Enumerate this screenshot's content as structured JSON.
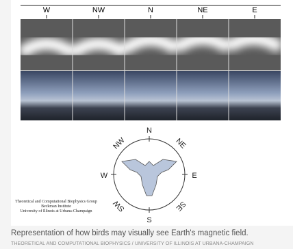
{
  "figure": {
    "directions": [
      "W",
      "NW",
      "N",
      "NE",
      "E"
    ],
    "compass": {
      "n": "N",
      "ne": "NE",
      "e": "E",
      "se": "SE",
      "s": "S",
      "sw": "SW",
      "w": "W",
      "nw": "NW"
    },
    "credits": [
      "Theoretical and Computational Biophysics Group",
      "Beckman Institute",
      "University of Illinois at Urbana-Champaign"
    ]
  },
  "caption": {
    "text": "Representation of how birds may visually see Earth's magnetic field.",
    "credit": "THEORETICAL AND COMPUTATIONAL BIOPHYSICS / UNIVERSITY OF ILLINOIS AT URBANA-CHAMPAIGN"
  }
}
